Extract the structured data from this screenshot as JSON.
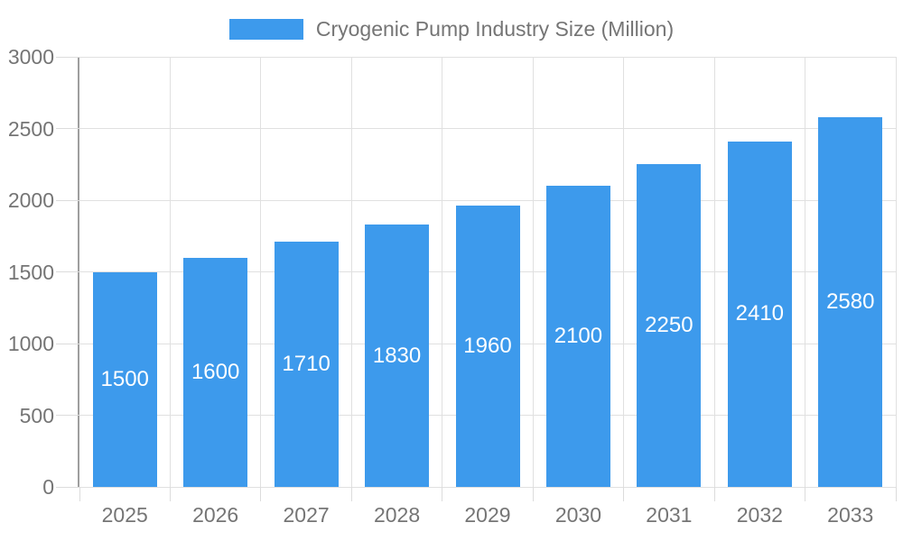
{
  "legend": {
    "label": "Cryogenic Pump Industry Size (Million)"
  },
  "chart_data": {
    "type": "bar",
    "title": "Cryogenic Pump Industry Size (Million)",
    "series_name": "Cryogenic Pump Industry Size (Million)",
    "categories": [
      "2025",
      "2026",
      "2027",
      "2028",
      "2029",
      "2030",
      "2031",
      "2032",
      "2033"
    ],
    "values": [
      1500,
      1600,
      1710,
      1830,
      1960,
      2100,
      2250,
      2410,
      2580
    ],
    "value_labels": [
      "1500",
      "1600",
      "1710",
      "1830",
      "1960",
      "2100",
      "2250",
      "2410",
      "2580"
    ],
    "value_label_position": "inside-center",
    "xlabel": "",
    "ylabel": "",
    "ylim": [
      0,
      3000
    ],
    "y_ticks": [
      0,
      500,
      1000,
      1500,
      2000,
      2500,
      3000
    ],
    "grid": true,
    "legend_position": "top-center",
    "colors": {
      "bar": "#3D9AEC",
      "value_label_text": "#FFFFFF",
      "axis_text": "#757575",
      "gridline": "#E0E0E0",
      "axis_line": "#9E9E9E",
      "background": "#FFFFFF"
    }
  }
}
